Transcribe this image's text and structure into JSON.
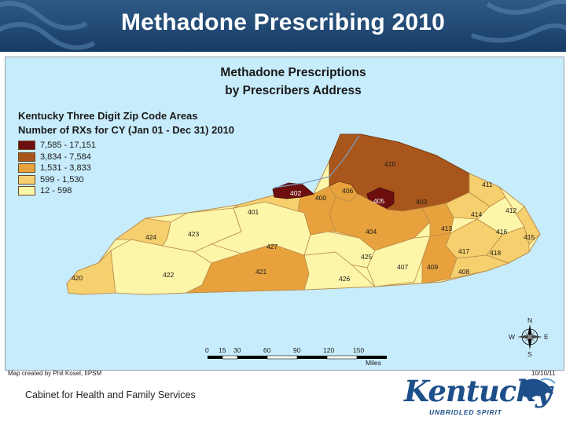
{
  "slide": {
    "title": "Methadone Prescribing 2010",
    "footer": "Cabinet for Health and Family Services",
    "credit": "Map created by Phil Kosel, IIPSM",
    "date": "10/10/11"
  },
  "map": {
    "title_line1": "Methadone Prescriptions",
    "title_line2": "by Prescribers Address",
    "subtitle_line1": "Kentucky Three Digit Zip Code Areas",
    "subtitle_line2": "Number of RXs for CY (Jan 01 - Dec 31) 2010",
    "legend": [
      {
        "label": "7,585 - 17,151",
        "color": "#6e0f0f"
      },
      {
        "label": "3,834 - 7,584",
        "color": "#a9561c"
      },
      {
        "label": "1,531 - 3,833",
        "color": "#e8a23d"
      },
      {
        "label": "599 - 1,530",
        "color": "#f6cf6e"
      },
      {
        "label": "12 - 598",
        "color": "#fdf5a8"
      }
    ],
    "zip_labels": [
      "410",
      "402",
      "406",
      "405",
      "403",
      "411",
      "412",
      "401",
      "400",
      "404",
      "413",
      "414",
      "416",
      "415",
      "424",
      "423",
      "427",
      "417",
      "418",
      "425",
      "420",
      "422",
      "421",
      "426",
      "407",
      "409",
      "408"
    ],
    "scale_ticks": [
      "0",
      "15",
      "30",
      "60",
      "90",
      "120",
      "150"
    ],
    "scale_unit": "Miles",
    "compass": {
      "n": "N",
      "s": "S",
      "e": "E",
      "w": "W"
    }
  },
  "logo": {
    "word": "Kentucky",
    "tagline": "UNBRIDLED SPIRIT"
  }
}
